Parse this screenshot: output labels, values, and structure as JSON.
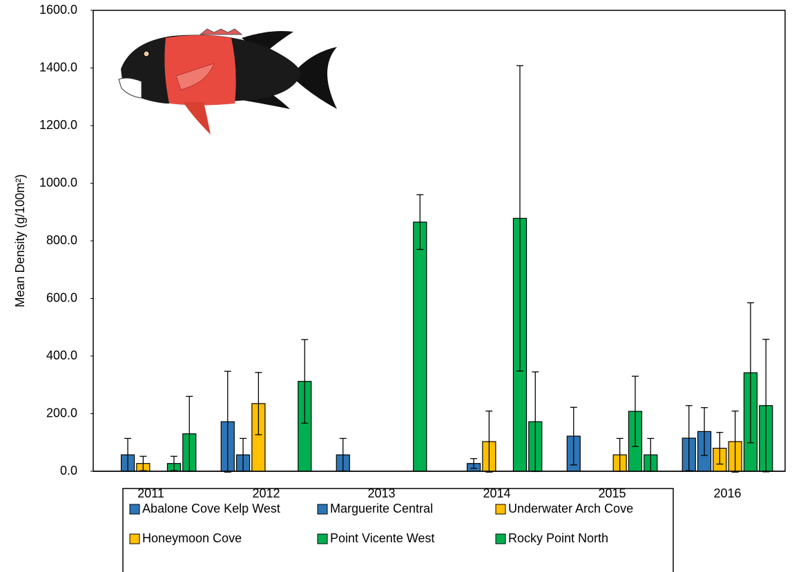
{
  "chart_data": {
    "type": "bar",
    "y_label": "Mean Density (g/100m²)",
    "categories": [
      "2011",
      "2012",
      "2013",
      "2014",
      "2015",
      "2016"
    ],
    "series": [
      {
        "name": "Abalone Cove Kelp West",
        "color": "#2e75b6",
        "values": [
          null,
          172,
          57,
          null,
          122,
          115
        ],
        "errors": [
          null,
          175,
          57,
          null,
          100,
          113
        ]
      },
      {
        "name": "Marguerite Central",
        "color": "#2e75b6",
        "values": [
          57,
          57,
          null,
          27,
          null,
          138
        ],
        "errors": [
          57,
          57,
          null,
          17,
          null,
          83
        ]
      },
      {
        "name": "Underwater Arch Cove",
        "color": "#ffc000",
        "values": [
          27,
          235,
          null,
          103,
          null,
          80
        ],
        "errors": [
          25,
          108,
          null,
          106,
          null,
          55
        ]
      },
      {
        "name": "Honeymoon Cove",
        "color": "#ffc000",
        "values": [
          null,
          null,
          null,
          null,
          57,
          103
        ],
        "errors": [
          null,
          null,
          null,
          null,
          57,
          106
        ]
      },
      {
        "name": "Point Vicente West",
        "color": "#00b050",
        "values": [
          27,
          null,
          null,
          878,
          208,
          342
        ],
        "errors": [
          25,
          null,
          null,
          530,
          122,
          243
        ]
      },
      {
        "name": "Rocky Point North",
        "color": "#00b050",
        "values": [
          130,
          312,
          865,
          172,
          57,
          228
        ],
        "errors": [
          130,
          145,
          95,
          173,
          57,
          230
        ]
      }
    ],
    "ylim": [
      0,
      1600
    ],
    "yticks": [
      {
        "value": 0,
        "label": "0.0"
      },
      {
        "value": 200,
        "label": "200.0"
      },
      {
        "value": 400,
        "label": "400.0"
      },
      {
        "value": 600,
        "label": "600.0"
      },
      {
        "value": 800,
        "label": "800.0"
      },
      {
        "value": 1000,
        "label": "1000.0"
      },
      {
        "value": 1200,
        "label": "1200.0"
      },
      {
        "value": 1400,
        "label": "1400.0"
      },
      {
        "value": 1600,
        "label": "1600.0"
      }
    ],
    "legend": "bottom"
  }
}
